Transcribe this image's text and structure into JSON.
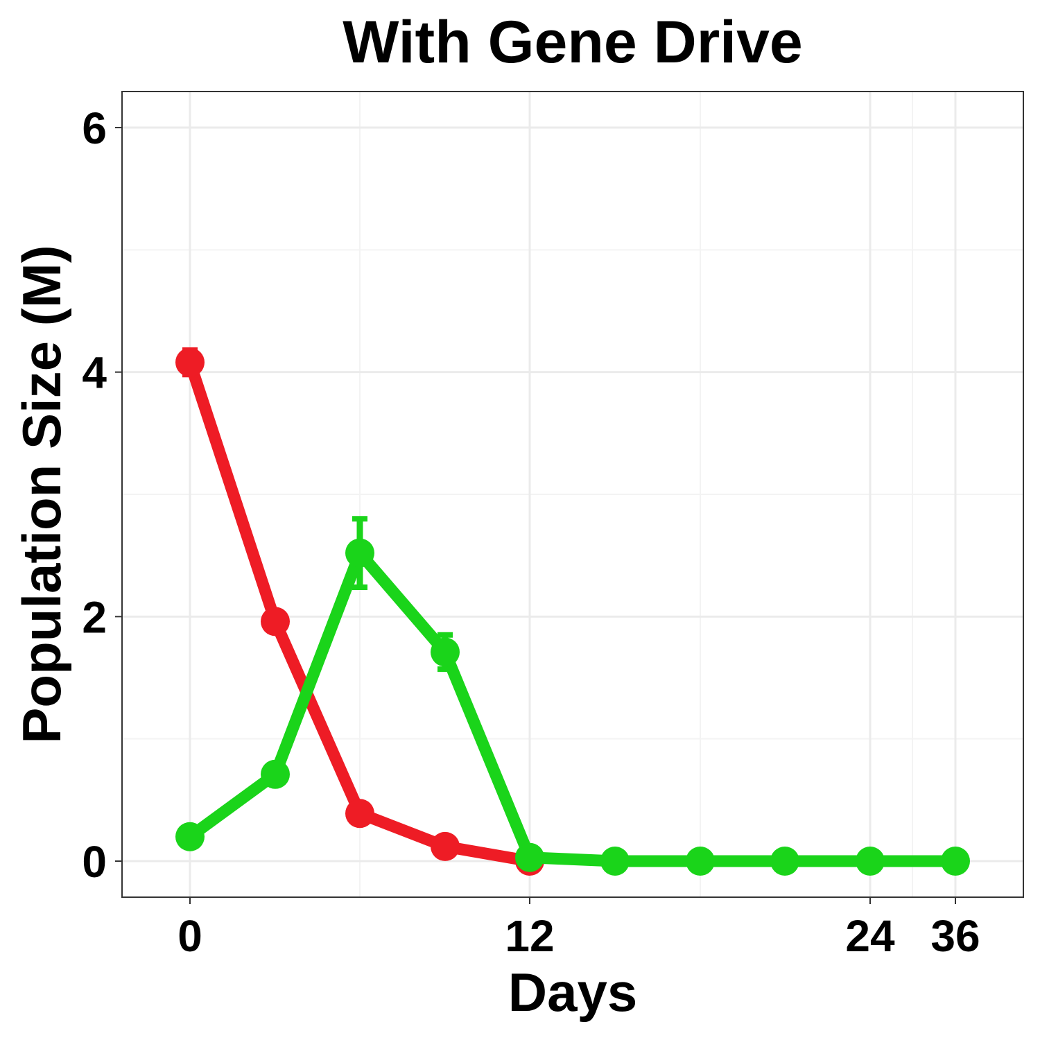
{
  "chart_data": {
    "type": "line",
    "title": "With Gene Drive",
    "xlabel": "Days",
    "ylabel": "Population Size (M)",
    "x": [
      0,
      3,
      6,
      9,
      12,
      15,
      18,
      21,
      24,
      36
    ],
    "x_ticks": [
      0,
      12,
      24,
      36
    ],
    "y_ticks": [
      0,
      2,
      4,
      6
    ],
    "ylim": [
      -0.3,
      6.3
    ],
    "grid": true,
    "series": [
      {
        "color": "#ee1c25",
        "values": [
          4.08,
          1.96,
          0.39,
          0.12,
          0.0,
          null,
          null,
          null,
          null,
          null
        ],
        "error": [
          0.1,
          0.08,
          0.04,
          0.03,
          0.01,
          null,
          null,
          null,
          null,
          null
        ]
      },
      {
        "color": "#1ad41a",
        "values": [
          0.2,
          0.71,
          2.52,
          1.71,
          0.03,
          0.0,
          0.0,
          0.0,
          0.0,
          0.0
        ],
        "error": [
          0.03,
          0.05,
          0.28,
          0.14,
          0.02,
          0.01,
          0.01,
          0.01,
          0.01,
          0.01
        ]
      }
    ]
  }
}
